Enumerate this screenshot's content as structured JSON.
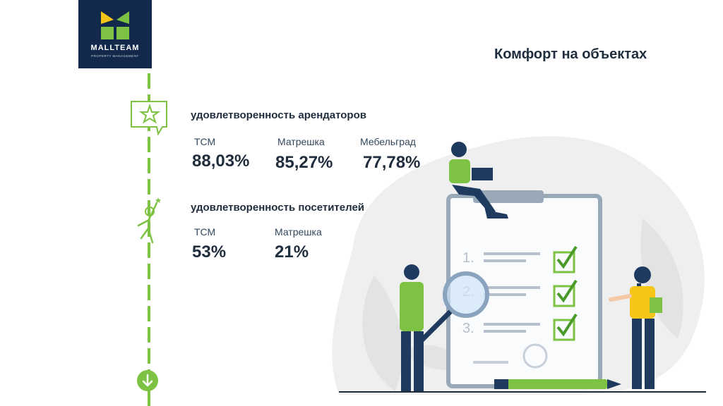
{
  "logo": {
    "brand": "MALLTEAM",
    "sub": "PROPERTY MANAGEMENT"
  },
  "page_title": "Комфорт на объектах",
  "tenants": {
    "title": "удовлетворенность арендаторов",
    "items": [
      {
        "label": "ТСМ",
        "value": "88,03%"
      },
      {
        "label": "Матрешка",
        "value": "85,27%"
      },
      {
        "label": "Мебельград",
        "value": "77,78%"
      }
    ]
  },
  "visitors": {
    "title": "удовлетворенность посетителей",
    "items": [
      {
        "label": "ТСМ",
        "value": "53%"
      },
      {
        "label": "Матрешка",
        "value": "21%"
      }
    ]
  },
  "checklist_numbers": [
    "1.",
    "2.",
    "3."
  ],
  "colors": {
    "accent": "#7dc242",
    "navy": "#13294b",
    "logo_yellow": "#f5c518"
  },
  "icons": [
    "star-speech-icon",
    "person-celebrate-icon",
    "arrow-down-icon"
  ]
}
